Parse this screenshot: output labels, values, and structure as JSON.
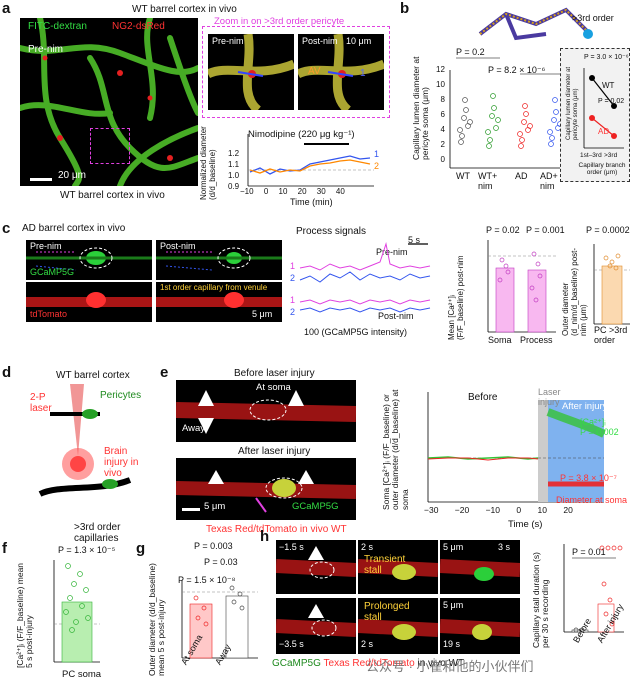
{
  "panels": {
    "a": {
      "letter": "a",
      "title": "WT barrel cortex in vivo",
      "fitc": "FITC-dextran",
      "ng2": "NG2-dsRed",
      "zoom_label": "Zoom in on >3rd order pericyte",
      "pre": "Pre-nim",
      "post": "Post-nim",
      "scale_big": "20 μm",
      "scale_small": "10 μm",
      "av": "AV",
      "num1": "1",
      "bottom_caption": "WT barrel cortex in vivo",
      "drug": "Nimodipine (220 μg kg⁻¹)",
      "ylabel": "Normalized diameter (d/d_baseline)",
      "xlabel": "Time (min)",
      "xticks": [
        "−10",
        "0",
        "10",
        "20",
        "30",
        "40"
      ],
      "yticks": [
        "0.9",
        "1.0",
        "1.1",
        "1.2"
      ],
      "trace_labels": [
        "1",
        "2"
      ]
    },
    "b": {
      "letter": "b",
      "order_label": ">3rd order",
      "ylabel": "Capillary lumen diameter at pericyte soma (μm)",
      "yticks": [
        "0",
        "2",
        "4",
        "6",
        "8",
        "10",
        "12"
      ],
      "groups": [
        "WT",
        "WT+ nim",
        "AD",
        "AD+ nim"
      ],
      "p1": "P = 0.2",
      "p2": "P = 8.2 × 10⁻⁶",
      "inset_ylabel": "Capillary lumen diameter at pericyte soma (μm)",
      "inset_xlabel": "Capillary branch order (μm)",
      "inset_xticks": [
        "1st–3rd",
        ">3rd"
      ],
      "inset_yticks": [
        "4.0",
        "4.5",
        "5.0",
        "5.5",
        "6.0",
        "6.5",
        "7.0"
      ],
      "inset_p1": "P = 3.0 × 10⁻⁶",
      "inset_p2": "P = 0.02",
      "inset_wt": "WT",
      "inset_ad": "AD"
    },
    "c": {
      "letter": "c",
      "title": "AD barrel cortex in vivo",
      "pre": "Pre-nim",
      "post": "Post-nim",
      "gcamp": "GCaMP5G",
      "tdtomato": "tdTomato",
      "venule": "1st order capillary from venule",
      "scale": "5 μm",
      "process_signals": "Process signals",
      "pre_trace": "Pre-nim",
      "post_trace": "Post-nim",
      "time_scale": "5 s",
      "intensity_scale": "100 (GCaMP5G intensity)",
      "trace_nums": [
        "1",
        "2",
        "1",
        "2"
      ],
      "bar_ylabel": "Mean [Ca²⁺]ᵢ (F/F_baseline) post-nim",
      "bar_p1": "P = 0.02",
      "bar_p2": "P = 0.001",
      "bar_groups": [
        "Soma",
        "Process"
      ],
      "bar_yticks": [
        "0",
        "0.2",
        "0.4",
        "0.6",
        "0.8",
        "1.0",
        "1.2"
      ],
      "od_ylabel": "Outer diameter (d_nim/d_baseline) post-nim (μm)",
      "od_p": "P = 0.0002",
      "od_group": "PC >3rd order",
      "od_yticks": [
        "0",
        "0.2",
        "0.4",
        "0.6",
        "0.8",
        "1.0",
        "1.2",
        "1.4"
      ]
    },
    "d": {
      "letter": "d",
      "title": "WT barrel cortex",
      "laser": "2-P laser",
      "pericytes": "Pericytes",
      "brain_injury": "Brain injury in vivo",
      "capillaries": ">3rd order capillaries"
    },
    "e": {
      "letter": "e",
      "before": "Before laser injury",
      "at_soma": "At soma",
      "away": "Away",
      "after": "After laser injury",
      "scale": "5 μm",
      "gcamp": "GCaMP5G",
      "caption": "Texas Red/tdTomato in vivo WT",
      "chart_ylabel": "Soma [Ca²⁺]ᵢ (F/F_baseline) or outer diameter (d/d_baseline) at soma",
      "chart_xlabel": "Time (s)",
      "before_label": "Before",
      "laser_label": "Laser injury",
      "after_label": "After injury",
      "ca_label": "[Ca²⁺]ᵢ",
      "p_ca": "P = 0.002",
      "p_diam": "P = 3.8 × 10⁻⁷",
      "diam_label": "Diameter at soma",
      "xticks": [
        "−30",
        "−20",
        "−10",
        "0",
        "10",
        "20"
      ],
      "yticks": [
        "0",
        "0.5",
        "1.0",
        "1.5",
        "2.0",
        "2.5"
      ]
    },
    "f": {
      "letter": "f",
      "p": "P = 1.3 × 10⁻⁵",
      "ylabel": "[Ca²⁺]ᵢ (F/F_baseline) mean 5 s post-injury",
      "group": "PC soma",
      "yticks": [
        "0",
        "0.2",
        "0.4",
        "0.6",
        "0.8",
        "1.0",
        "1.2",
        "1.4",
        "1.6",
        "1.8",
        "2.0",
        "2.2",
        "2.4",
        "2.6"
      ]
    },
    "g": {
      "letter": "g",
      "p1": "P = 0.003",
      "p2": "P = 0.03",
      "p3": "P = 1.5 × 10⁻⁸",
      "ylabel": "Outer diameter (d/d_baseline) mean 5 s post-injury",
      "groups": [
        "At soma",
        "Away"
      ],
      "yticks": [
        "0",
        "0.2",
        "0.4",
        "0.6",
        "0.8",
        "1.0",
        "1.2"
      ]
    },
    "h": {
      "letter": "h",
      "t1": "−1.5 s",
      "t2": "2 s",
      "t3": "3 s",
      "t4": "−3.5 s",
      "t5": "2 s",
      "t6": "19 s",
      "transient": "Transient stall",
      "prolonged": "Prolonged stall",
      "scale1": "5 μm",
      "scale2": "5 μm",
      "caption_green": "GCaMP5G",
      "caption_red": "Texas Red/tdTomato",
      "caption_rest": "in vivo WT",
      "p": "P = 0.01",
      "ylabel": "Capillary stall duration (s) per 30 s recording",
      "groups": [
        "Before",
        "After injury"
      ],
      "yticks": [
        "0",
        "5",
        "10",
        "15",
        "20",
        "25",
        "30"
      ]
    }
  },
  "watermark": "公众号 · 小崔和他的小伙伴们"
}
